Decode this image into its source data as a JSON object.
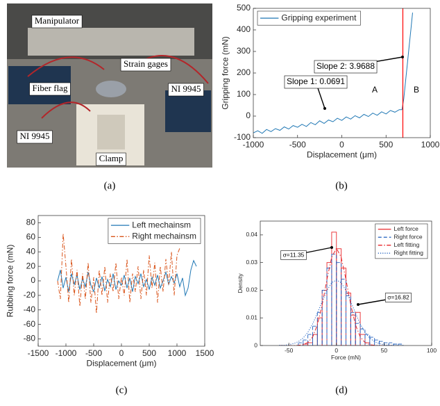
{
  "photo": {
    "labels": [
      "Manipulator",
      "Strain gages",
      "Fiber flag",
      "NI 9945",
      "NI 9945",
      "Clamp"
    ],
    "caption": "(a)"
  },
  "chart_data": [
    {
      "type": "line",
      "caption": "(b)",
      "xlabel": "Displacement (μm)",
      "ylabel": "Gripping force (mN)",
      "xlim": [
        -1000,
        1000
      ],
      "ylim": [
        -100,
        500
      ],
      "xticks": [
        -1000,
        -500,
        0,
        500,
        1000
      ],
      "yticks": [
        -100,
        0,
        100,
        200,
        300,
        400,
        500
      ],
      "legend": "upper left",
      "x": [
        -1000,
        -950,
        -900,
        -850,
        -800,
        -750,
        -700,
        -650,
        -600,
        -550,
        -500,
        -450,
        -400,
        -350,
        -300,
        -250,
        -200,
        -150,
        -100,
        -50,
        0,
        50,
        100,
        150,
        200,
        250,
        300,
        350,
        400,
        450,
        500,
        550,
        600,
        650,
        680,
        700,
        720,
        740,
        760,
        780,
        800
      ],
      "series": [
        {
          "name": "Gripping experiment",
          "color": "#1f77b4",
          "line_style": "solid",
          "values": [
            -78,
            -68,
            -80,
            -62,
            -72,
            -58,
            -66,
            -50,
            -60,
            -44,
            -52,
            -38,
            -48,
            -30,
            -40,
            -22,
            -34,
            -18,
            -26,
            -10,
            -20,
            -4,
            -14,
            2,
            -8,
            8,
            -2,
            14,
            4,
            20,
            10,
            26,
            18,
            30,
            30,
            80,
            160,
            240,
            320,
            400,
            480
          ]
        }
      ],
      "vline": {
        "x": 690,
        "color": "#ff0000"
      },
      "annotations": [
        "Slope 1: 0.0691",
        "Slope 2: 3.9688",
        "A",
        "B"
      ]
    },
    {
      "type": "line",
      "caption": "(c)",
      "xlabel": "Displacement (μm)",
      "ylabel": "Rubbing force (mN)",
      "xlim": [
        -1500,
        1500
      ],
      "ylim": [
        -90,
        90
      ],
      "xticks": [
        -1500,
        -1000,
        -500,
        0,
        500,
        1000,
        1500
      ],
      "yticks": [
        -80,
        -60,
        -40,
        -20,
        0,
        20,
        40,
        60,
        80
      ],
      "legend": "upper right",
      "x": [
        -1150,
        -1100,
        -1050,
        -1000,
        -950,
        -900,
        -850,
        -800,
        -750,
        -700,
        -650,
        -600,
        -550,
        -500,
        -450,
        -400,
        -350,
        -300,
        -250,
        -200,
        -150,
        -100,
        -50,
        0,
        50,
        100,
        150,
        200,
        250,
        300,
        350,
        400,
        450,
        500,
        550,
        600,
        650,
        700,
        750,
        800,
        850,
        900,
        950,
        1000,
        1050,
        1100,
        1150,
        1200,
        1250,
        1300,
        1350
      ],
      "series": [
        {
          "name": "Left mechainsm",
          "color": "#1f77b4",
          "line_style": "solid",
          "values": [
            0,
            15,
            -10,
            5,
            -15,
            10,
            -5,
            8,
            -12,
            3,
            -8,
            12,
            -6,
            -15,
            4,
            -10,
            6,
            -14,
            2,
            -8,
            10,
            -12,
            0,
            -6,
            8,
            -10,
            4,
            -15,
            6,
            -4,
            10,
            -8,
            2,
            -12,
            5,
            -6,
            8,
            -10,
            0,
            12,
            -5,
            6,
            -3,
            10,
            -8,
            4,
            -20,
            -10,
            15,
            28,
            20
          ]
        },
        {
          "name": "Right mechainsm",
          "color": "#d95319",
          "line_style": "dashdot",
          "values": [
            0,
            -25,
            65,
            20,
            -30,
            30,
            -20,
            15,
            -35,
            10,
            -25,
            25,
            -30,
            5,
            -45,
            15,
            -20,
            20,
            -30,
            10,
            -15,
            25,
            -25,
            5,
            -20,
            30,
            -30,
            10,
            -15,
            20,
            -25,
            15,
            -20,
            35,
            -10,
            25,
            -30,
            20,
            -15,
            30,
            -5,
            40,
            -20,
            35,
            45,
            null,
            null,
            null,
            null,
            null,
            null
          ]
        }
      ]
    },
    {
      "type": "histogram",
      "caption": "(d)",
      "xlabel": "Force (mN)",
      "ylabel": "Density",
      "xlim": [
        -80,
        100
      ],
      "ylim": [
        0,
        0.045
      ],
      "xticks": [
        -50,
        0,
        50,
        100
      ],
      "yticks": [
        0,
        0.01,
        0.02,
        0.03,
        0.04
      ],
      "legend": "upper right",
      "bins": [
        -40,
        -35,
        -30,
        -25,
        -20,
        -15,
        -10,
        -5,
        0,
        5,
        10,
        15,
        20,
        25,
        30,
        35,
        40,
        45,
        50,
        55,
        60,
        65,
        70
      ],
      "series": [
        {
          "name": "Left force",
          "color": "#e8262a",
          "line_style": "solid",
          "values": [
            0,
            0.0005,
            0.001,
            0.004,
            0.01,
            0.02,
            0.03,
            0.041,
            0.035,
            0.028,
            0.019,
            0.011,
            0.012,
            0.004,
            0.001,
            0,
            0,
            0,
            0,
            0,
            0,
            0
          ]
        },
        {
          "name": "Right force",
          "color": "#1f5fbf",
          "line_style": "dashed",
          "values": [
            0.001,
            0.002,
            0.004,
            0.007,
            0.012,
            0.02,
            0.028,
            0.033,
            0.03,
            0.024,
            0.018,
            0.012,
            0.008,
            0.006,
            0.004,
            0.003,
            0.002,
            0.0015,
            0.001,
            0.001,
            0.0005,
            0.0005
          ]
        }
      ],
      "curves": [
        {
          "name": "Left fitting",
          "color": "#e8262a",
          "line_style": "dashdot",
          "x": [
            -60,
            -55,
            -50,
            -45,
            -40,
            -35,
            -30,
            -25,
            -20,
            -15,
            -10,
            -5,
            0,
            5,
            10,
            15,
            20,
            25,
            30,
            35,
            40,
            45,
            50,
            55,
            60
          ],
          "values": [
            0,
            0,
            0,
            0,
            0.0001,
            0.0003,
            0.0011,
            0.0031,
            0.0075,
            0.0147,
            0.0239,
            0.0319,
            0.0352,
            0.0319,
            0.0239,
            0.0147,
            0.0075,
            0.0031,
            0.0011,
            0.0003,
            0.0001,
            0,
            0,
            0,
            0
          ]
        },
        {
          "name": "Right fitting",
          "color": "#1f5fbf",
          "line_style": "dotted",
          "x": [
            -60,
            -55,
            -50,
            -45,
            -40,
            -35,
            -30,
            -25,
            -20,
            -15,
            -10,
            -5,
            0,
            5,
            10,
            15,
            20,
            25,
            30,
            35,
            40,
            45,
            50,
            55,
            60
          ],
          "values": [
            0.0001,
            0.0001,
            0.0003,
            0.0007,
            0.0014,
            0.0027,
            0.0048,
            0.0078,
            0.0117,
            0.0159,
            0.0199,
            0.0227,
            0.0237,
            0.0227,
            0.0199,
            0.0159,
            0.0117,
            0.0078,
            0.0048,
            0.0027,
            0.0014,
            0.0007,
            0.0003,
            0.0001,
            0.0001
          ]
        }
      ],
      "annotations": [
        "σ=11.35",
        "σ=16.82"
      ]
    }
  ]
}
